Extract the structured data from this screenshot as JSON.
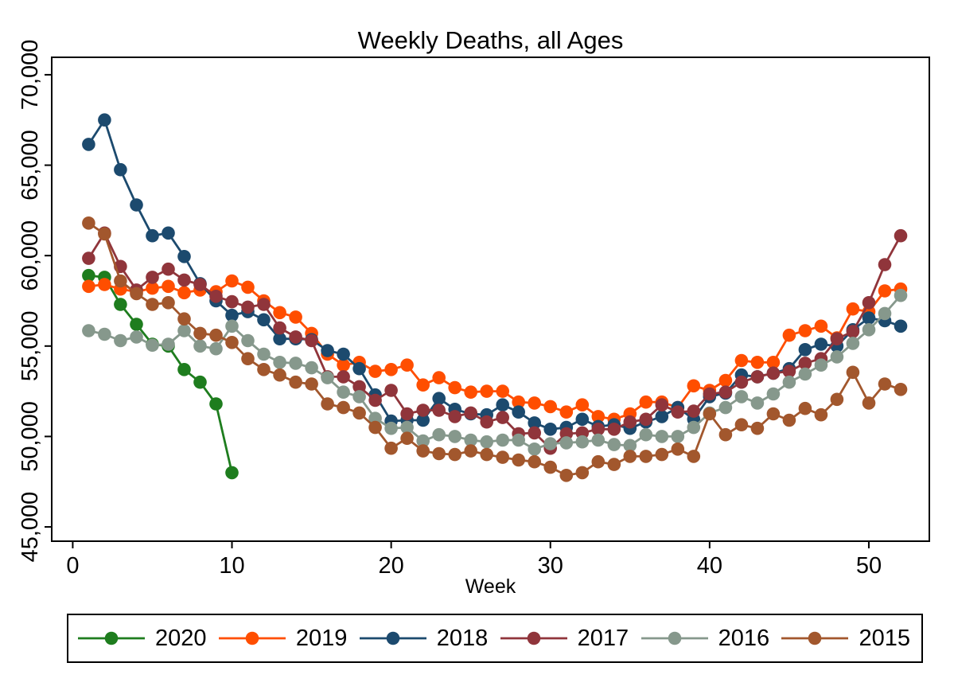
{
  "chart_data": {
    "type": "line",
    "title": "Weekly Deaths, all Ages",
    "xlabel": "Week",
    "ylabel": "",
    "xlim": [
      -1.32,
      53.8
    ],
    "ylim": [
      44210,
      70965
    ],
    "xticks": [
      0,
      10,
      20,
      30,
      40,
      50
    ],
    "xtick_labels": [
      "0",
      "10",
      "20",
      "30",
      "40",
      "50"
    ],
    "yticks": [
      45000,
      50000,
      55000,
      60000,
      65000,
      70000
    ],
    "ytick_labels": [
      "45,000",
      "50,000",
      "55,000",
      "60,000",
      "65,000",
      "70,000"
    ],
    "grid": false,
    "legend_position": "bottom",
    "legend_order": [
      "2020",
      "2019",
      "2018",
      "2017",
      "2016",
      "2015"
    ],
    "marker": "circle",
    "series": [
      {
        "name": "2020",
        "color": "#1e7d1e",
        "weeks_from": 1,
        "weeks_to": 10,
        "values": [
          58900,
          58800,
          57300,
          56200,
          55100,
          55000,
          53700,
          53000,
          51800,
          48000
        ]
      },
      {
        "name": "2019",
        "color": "#ff4e00",
        "weeks_from": 1,
        "weeks_to": 52,
        "values": [
          58300,
          58400,
          58150,
          58000,
          58200,
          58300,
          57950,
          58100,
          58000,
          58600,
          58250,
          57500,
          56850,
          56600,
          55700,
          54550,
          53950,
          54100,
          53600,
          53700,
          53950,
          52850,
          53250,
          52700,
          52450,
          52500,
          52500,
          51900,
          51850,
          51650,
          51350,
          51750,
          51100,
          50950,
          51250,
          51900,
          51900,
          51600,
          52800,
          52550,
          53100,
          54200,
          54100,
          54100,
          55600,
          55850,
          56100,
          55450,
          57050,
          56900,
          58050,
          58150
        ]
      },
      {
        "name": "2018",
        "color": "#1c4a6e",
        "weeks_from": 1,
        "weeks_to": 52,
        "values": [
          66150,
          67500,
          64750,
          62800,
          61100,
          61250,
          59950,
          58450,
          57500,
          56700,
          56900,
          56450,
          55400,
          55400,
          55350,
          54750,
          54550,
          53750,
          52300,
          50850,
          50900,
          50900,
          52100,
          51500,
          51250,
          51200,
          51750,
          51350,
          50750,
          50400,
          50500,
          50950,
          50550,
          50650,
          50450,
          50800,
          51100,
          51600,
          50950,
          52200,
          52400,
          53400,
          53300,
          53500,
          53750,
          54800,
          55100,
          55000,
          55900,
          56550,
          56400,
          56100
        ]
      },
      {
        "name": "2017",
        "color": "#90353b",
        "weeks_from": 1,
        "weeks_to": 52,
        "values": [
          59850,
          61250,
          59400,
          58100,
          58800,
          59250,
          58650,
          58400,
          57750,
          57450,
          57150,
          57300,
          56000,
          55500,
          55300,
          53300,
          53300,
          52750,
          52000,
          52550,
          51250,
          51450,
          51450,
          51100,
          51300,
          50800,
          51050,
          50150,
          50200,
          49350,
          50150,
          50200,
          50400,
          50400,
          50800,
          50950,
          51750,
          51350,
          51400,
          52350,
          52450,
          53000,
          53300,
          53500,
          53600,
          54050,
          54300,
          55400,
          55800,
          57400,
          59500,
          61100
        ]
      },
      {
        "name": "2016",
        "color": "#86988c",
        "weeks_from": 1,
        "weeks_to": 52,
        "values": [
          55850,
          55650,
          55300,
          55500,
          55050,
          55100,
          55850,
          55000,
          54850,
          56100,
          55300,
          54550,
          54100,
          54050,
          53800,
          53250,
          52450,
          52200,
          51000,
          50450,
          50500,
          49750,
          50100,
          50000,
          49800,
          49700,
          49800,
          49800,
          49300,
          49600,
          49650,
          49700,
          49800,
          49550,
          49500,
          50100,
          50000,
          50000,
          50500,
          51300,
          51600,
          52200,
          51850,
          52350,
          53000,
          53450,
          53950,
          54400,
          55150,
          55900,
          56800,
          57800
        ]
      },
      {
        "name": "2015",
        "color": "#a2572d",
        "weeks_from": 1,
        "weeks_to": 52,
        "values": [
          61800,
          61200,
          58600,
          57900,
          57300,
          57400,
          56500,
          55700,
          55600,
          55200,
          54300,
          53700,
          53400,
          53000,
          52900,
          51800,
          51600,
          51300,
          50500,
          49350,
          49900,
          49200,
          49050,
          49000,
          49200,
          49000,
          48850,
          48700,
          48600,
          48300,
          47850,
          48000,
          48600,
          48450,
          48900,
          48900,
          49000,
          49300,
          48900,
          51250,
          50100,
          50650,
          50450,
          51250,
          50900,
          51550,
          51200,
          52050,
          53550,
          51850,
          52900,
          52600
        ]
      }
    ]
  }
}
